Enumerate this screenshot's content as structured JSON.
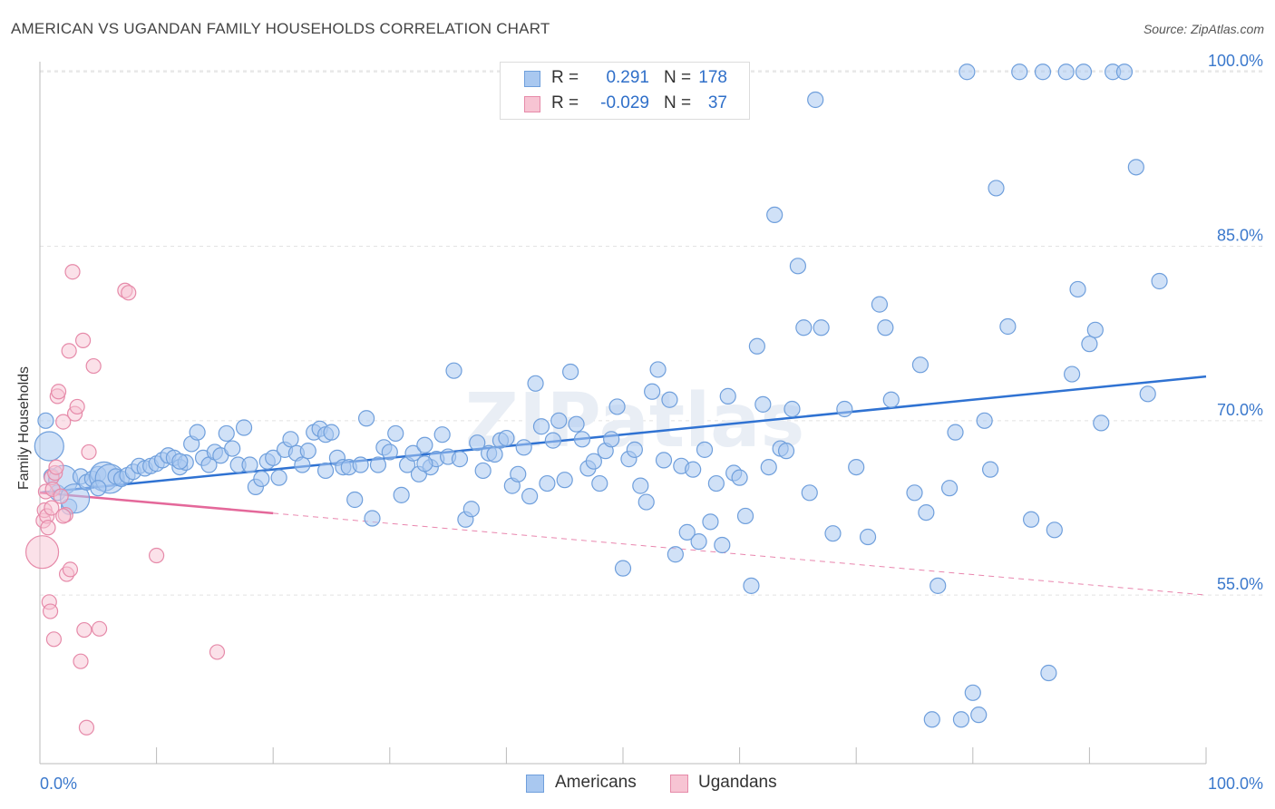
{
  "title": "AMERICAN VS UGANDAN FAMILY HOUSEHOLDS CORRELATION CHART",
  "source": "Source: ZipAtlas.com",
  "watermark": "ZIPatlas",
  "colors": {
    "blue_fill": "#a9c8f0",
    "blue_stroke": "#6f9fdc",
    "blue_line": "#2f72d2",
    "pink_fill": "#f7c4d3",
    "pink_stroke": "#e68aa9",
    "pink_line": "#e4689a",
    "axis_text": "#3a78cc",
    "grid": "#e2e2e2"
  },
  "legend": {
    "americans": {
      "r_label": "R =",
      "r_value": "0.291",
      "n_label": "N =",
      "n_value": "178"
    },
    "ugandans": {
      "r_label": "R =",
      "r_value": "-0.029",
      "n_label": "N =",
      "n_value": "37"
    }
  },
  "bottom_legend": {
    "americans": "Americans",
    "ugandans": "Ugandans"
  },
  "chart_data": {
    "type": "scatter",
    "title": "AMERICAN VS UGANDAN FAMILY HOUSEHOLDS CORRELATION CHART",
    "xlabel": "",
    "ylabel": "Family Households",
    "xlim": [
      0,
      100
    ],
    "ylim": [
      40.5,
      101.5
    ],
    "x_tick_labels": [
      "0.0%",
      "100.0%"
    ],
    "y_ticks": [
      55,
      70,
      85,
      100
    ],
    "y_tick_labels": [
      "55.0%",
      "70.0%",
      "85.0%",
      "100.0%"
    ],
    "grid": true,
    "series": [
      {
        "name": "Americans",
        "r": 0.291,
        "n": 178,
        "trend": {
          "x": [
            0,
            100
          ],
          "y": [
            63.8,
            73.8
          ],
          "dashed_from": null
        },
        "points": [
          [
            0.5,
            70.0
          ],
          [
            0.8,
            67.8
          ],
          [
            1.0,
            65.2
          ],
          [
            1.5,
            63.8
          ],
          [
            2.0,
            64.9
          ],
          [
            2.5,
            62.6
          ],
          [
            3.0,
            63.3
          ],
          [
            3.5,
            65.2
          ],
          [
            4.0,
            64.7
          ],
          [
            4.5,
            65.0
          ],
          [
            5.0,
            65.4
          ],
          [
            5.5,
            65.2
          ],
          [
            6.0,
            65.0
          ],
          [
            6.5,
            65.2
          ],
          [
            7.0,
            65.0
          ],
          [
            7.5,
            65.3
          ],
          [
            8.0,
            65.6
          ],
          [
            8.5,
            66.1
          ],
          [
            9.0,
            65.9
          ],
          [
            9.5,
            66.1
          ],
          [
            10.0,
            66.3
          ],
          [
            10.5,
            66.6
          ],
          [
            11.0,
            67.0
          ],
          [
            11.5,
            66.8
          ],
          [
            12.0,
            66.0
          ],
          [
            12.5,
            66.4
          ],
          [
            13.0,
            68.0
          ],
          [
            13.5,
            69.0
          ],
          [
            14.0,
            66.8
          ],
          [
            14.5,
            66.2
          ],
          [
            15.0,
            67.3
          ],
          [
            15.5,
            67.0
          ],
          [
            16.0,
            68.9
          ],
          [
            16.5,
            67.6
          ],
          [
            17.0,
            66.2
          ],
          [
            17.5,
            69.4
          ],
          [
            18.0,
            66.2
          ],
          [
            18.5,
            64.3
          ],
          [
            19.0,
            65.0
          ],
          [
            19.5,
            66.5
          ],
          [
            20.0,
            66.8
          ],
          [
            20.5,
            65.1
          ],
          [
            21.0,
            67.5
          ],
          [
            21.5,
            68.4
          ],
          [
            22.0,
            67.2
          ],
          [
            22.5,
            66.2
          ],
          [
            23.0,
            67.4
          ],
          [
            23.5,
            69.0
          ],
          [
            24.0,
            69.3
          ],
          [
            24.5,
            68.8
          ],
          [
            25.0,
            69.0
          ],
          [
            25.5,
            66.8
          ],
          [
            26.0,
            66.0
          ],
          [
            26.5,
            66.0
          ],
          [
            27.0,
            63.2
          ],
          [
            27.5,
            66.2
          ],
          [
            28.0,
            70.2
          ],
          [
            28.5,
            61.6
          ],
          [
            29.0,
            66.2
          ],
          [
            29.5,
            67.7
          ],
          [
            30.0,
            67.3
          ],
          [
            30.5,
            68.9
          ],
          [
            31.0,
            63.6
          ],
          [
            31.5,
            66.2
          ],
          [
            32.0,
            67.2
          ],
          [
            32.5,
            65.4
          ],
          [
            33.0,
            67.9
          ],
          [
            33.5,
            66.0
          ],
          [
            34.0,
            66.7
          ],
          [
            34.5,
            68.8
          ],
          [
            35.0,
            66.9
          ],
          [
            35.5,
            74.3
          ],
          [
            36.0,
            66.7
          ],
          [
            36.5,
            61.5
          ],
          [
            37.0,
            62.4
          ],
          [
            37.5,
            68.1
          ],
          [
            38.0,
            65.7
          ],
          [
            38.5,
            67.2
          ],
          [
            39.0,
            67.1
          ],
          [
            39.5,
            68.3
          ],
          [
            40.0,
            68.5
          ],
          [
            40.5,
            64.4
          ],
          [
            41.0,
            65.4
          ],
          [
            41.5,
            67.7
          ],
          [
            42.0,
            63.5
          ],
          [
            42.5,
            73.2
          ],
          [
            43.0,
            69.5
          ],
          [
            43.5,
            64.6
          ],
          [
            44.0,
            68.3
          ],
          [
            44.5,
            70.0
          ],
          [
            45.0,
            64.9
          ],
          [
            45.5,
            74.2
          ],
          [
            46.0,
            69.7
          ],
          [
            46.5,
            68.4
          ],
          [
            47.0,
            65.9
          ],
          [
            47.5,
            66.5
          ],
          [
            48.0,
            64.6
          ],
          [
            48.5,
            67.4
          ],
          [
            49.0,
            68.4
          ],
          [
            49.5,
            71.2
          ],
          [
            50.0,
            57.3
          ],
          [
            50.5,
            66.7
          ],
          [
            51.0,
            67.5
          ],
          [
            51.5,
            64.4
          ],
          [
            52.0,
            63.0
          ],
          [
            52.5,
            72.5
          ],
          [
            53.0,
            74.4
          ],
          [
            53.5,
            66.6
          ],
          [
            54.0,
            71.8
          ],
          [
            54.5,
            58.5
          ],
          [
            55.0,
            66.1
          ],
          [
            55.5,
            60.4
          ],
          [
            56.0,
            65.8
          ],
          [
            56.5,
            59.6
          ],
          [
            57.0,
            67.5
          ],
          [
            57.5,
            61.3
          ],
          [
            58.0,
            64.6
          ],
          [
            58.5,
            59.3
          ],
          [
            59.0,
            72.1
          ],
          [
            59.5,
            65.5
          ],
          [
            60.0,
            65.1
          ],
          [
            60.5,
            61.8
          ],
          [
            61.0,
            55.8
          ],
          [
            61.5,
            76.4
          ],
          [
            62.0,
            71.4
          ],
          [
            62.5,
            66.0
          ],
          [
            63.0,
            87.7
          ],
          [
            63.5,
            67.6
          ],
          [
            64.0,
            67.4
          ],
          [
            64.5,
            71.0
          ],
          [
            65.0,
            83.3
          ],
          [
            65.5,
            78.0
          ],
          [
            66.0,
            63.8
          ],
          [
            66.5,
            97.6
          ],
          [
            67.0,
            78.0
          ],
          [
            68.0,
            60.3
          ],
          [
            69.0,
            71.0
          ],
          [
            70.0,
            66.0
          ],
          [
            71.0,
            60.0
          ],
          [
            72.0,
            80.0
          ],
          [
            72.5,
            78.0
          ],
          [
            73.0,
            71.8
          ],
          [
            75.0,
            63.8
          ],
          [
            75.5,
            74.8
          ],
          [
            76.0,
            62.1
          ],
          [
            76.5,
            44.3
          ],
          [
            77.0,
            55.8
          ],
          [
            78.0,
            64.2
          ],
          [
            78.5,
            69.0
          ],
          [
            79.0,
            44.3
          ],
          [
            79.5,
            100.0
          ],
          [
            80.0,
            46.6
          ],
          [
            80.5,
            44.7
          ],
          [
            81.0,
            70.0
          ],
          [
            81.5,
            65.8
          ],
          [
            82.0,
            90.0
          ],
          [
            83.0,
            78.1
          ],
          [
            84.0,
            100.0
          ],
          [
            85.0,
            61.5
          ],
          [
            86.0,
            100.0
          ],
          [
            86.5,
            48.3
          ],
          [
            87.0,
            60.6
          ],
          [
            88.0,
            100.0
          ],
          [
            88.5,
            74.0
          ],
          [
            89.0,
            81.3
          ],
          [
            89.5,
            100.0
          ],
          [
            90.0,
            76.6
          ],
          [
            90.5,
            77.8
          ],
          [
            91.0,
            69.8
          ],
          [
            92.0,
            100.0
          ],
          [
            93.0,
            100.0
          ],
          [
            94.0,
            91.8
          ],
          [
            95.0,
            72.3
          ],
          [
            96.0,
            82.0
          ],
          [
            5.0,
            64.2
          ],
          [
            12.0,
            66.5
          ],
          [
            24.5,
            65.7
          ],
          [
            33.0,
            66.3
          ]
        ],
        "large_points": [
          [
            0.8,
            67.8
          ],
          [
            2.0,
            64.9
          ],
          [
            3.0,
            63.3
          ],
          [
            5.5,
            65.2
          ],
          [
            6.0,
            65.0
          ]
        ]
      },
      {
        "name": "Ugandans",
        "r": -0.029,
        "n": 37,
        "trend": {
          "x": [
            0,
            100
          ],
          "y": [
            63.8,
            55.0
          ],
          "solid_until_x": 20
        },
        "points": [
          [
            0.2,
            58.7
          ],
          [
            0.3,
            61.4
          ],
          [
            0.4,
            62.3
          ],
          [
            0.5,
            63.9
          ],
          [
            0.6,
            61.8
          ],
          [
            0.7,
            60.8
          ],
          [
            0.8,
            54.4
          ],
          [
            0.9,
            53.6
          ],
          [
            1.0,
            65.1
          ],
          [
            1.1,
            64.1
          ],
          [
            1.2,
            51.2
          ],
          [
            1.3,
            65.5
          ],
          [
            1.4,
            66.0
          ],
          [
            1.5,
            72.1
          ],
          [
            1.6,
            72.5
          ],
          [
            1.8,
            63.5
          ],
          [
            2.0,
            69.9
          ],
          [
            2.2,
            61.9
          ],
          [
            2.3,
            56.8
          ],
          [
            2.5,
            76.0
          ],
          [
            2.6,
            57.2
          ],
          [
            2.8,
            82.8
          ],
          [
            3.0,
            70.6
          ],
          [
            3.2,
            71.2
          ],
          [
            3.5,
            49.3
          ],
          [
            3.7,
            76.9
          ],
          [
            3.8,
            52.0
          ],
          [
            4.0,
            43.6
          ],
          [
            4.2,
            67.3
          ],
          [
            4.6,
            74.7
          ],
          [
            5.1,
            52.1
          ],
          [
            7.3,
            81.2
          ],
          [
            7.6,
            81.0
          ],
          [
            10.0,
            58.4
          ],
          [
            15.2,
            50.1
          ],
          [
            1.0,
            62.5
          ],
          [
            2.0,
            61.8
          ]
        ],
        "large_points": [
          [
            0.2,
            58.7
          ]
        ]
      }
    ]
  }
}
